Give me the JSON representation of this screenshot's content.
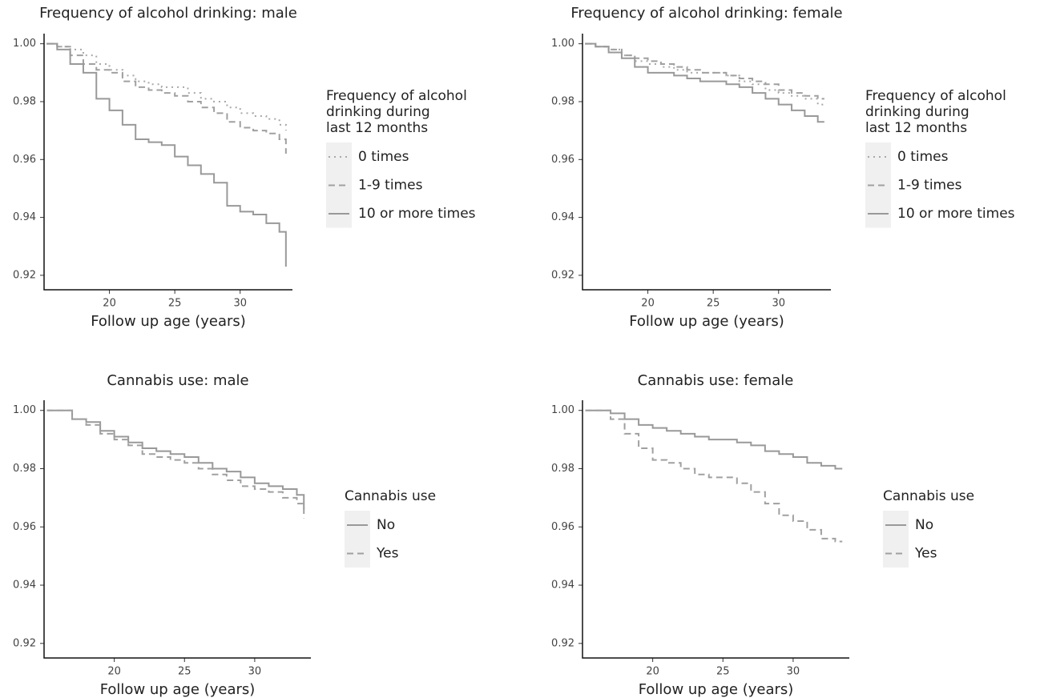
{
  "chart_data": [
    {
      "type": "line",
      "step": true,
      "title": "Frequency of alcohol drinking: male",
      "x_label": "Follow up age (years)",
      "legend_title": [
        "Frequency of alcohol",
        "drinking during",
        "last 12 months"
      ],
      "x": [
        15.2,
        16,
        17,
        18,
        19,
        20,
        21,
        22,
        23,
        24,
        25,
        26,
        27,
        28,
        29,
        30,
        31,
        32,
        33,
        33.5
      ],
      "series": [
        {
          "name": "0 times",
          "color": "#a8a8a8",
          "dash": "dotted",
          "values": [
            1.0,
            0.999,
            0.998,
            0.996,
            0.993,
            0.991,
            0.989,
            0.987,
            0.986,
            0.985,
            0.985,
            0.983,
            0.981,
            0.98,
            0.978,
            0.976,
            0.975,
            0.974,
            0.972,
            0.97
          ]
        },
        {
          "name": "1-9 times",
          "color": "#a0a0a0",
          "dash": "dashed",
          "values": [
            1.0,
            0.999,
            0.996,
            0.993,
            0.991,
            0.99,
            0.987,
            0.985,
            0.984,
            0.983,
            0.982,
            0.98,
            0.978,
            0.976,
            0.973,
            0.971,
            0.97,
            0.969,
            0.967,
            0.962
          ]
        },
        {
          "name": "10 or more times",
          "color": "#999999",
          "dash": "solid",
          "values": [
            1.0,
            0.998,
            0.993,
            0.99,
            0.981,
            0.977,
            0.972,
            0.967,
            0.966,
            0.965,
            0.961,
            0.958,
            0.955,
            0.952,
            0.944,
            0.942,
            0.941,
            0.938,
            0.935,
            0.923
          ]
        }
      ],
      "xlim": [
        15,
        34
      ],
      "xticks": [
        20,
        25,
        30
      ],
      "ylim": [
        0.915,
        1.0035
      ],
      "yticks": [
        0.92,
        0.94,
        0.96,
        0.98,
        {
          "value": 1,
          "label": "1.00"
        }
      ],
      "grid": false
    },
    {
      "type": "line",
      "step": true,
      "title": "Frequency of alcohol drinking: female",
      "x_label": "Follow up age (years)",
      "legend_title": [
        "Frequency of alcohol",
        "drinking during",
        "last 12 months"
      ],
      "x": [
        15.2,
        16,
        17,
        18,
        19,
        20,
        21,
        22,
        23,
        24,
        25,
        26,
        27,
        28,
        29,
        30,
        31,
        32,
        33,
        33.5
      ],
      "series": [
        {
          "name": "0 times",
          "color": "#a8a8a8",
          "dash": "dotted",
          "values": [
            1.0,
            0.999,
            0.998,
            0.996,
            0.994,
            0.993,
            0.992,
            0.991,
            0.99,
            0.99,
            0.99,
            0.989,
            0.987,
            0.986,
            0.984,
            0.983,
            0.982,
            0.981,
            0.979,
            0.979
          ]
        },
        {
          "name": "1-9 times",
          "color": "#a0a0a0",
          "dash": "dashed",
          "values": [
            1.0,
            0.999,
            0.998,
            0.996,
            0.995,
            0.994,
            0.993,
            0.992,
            0.991,
            0.99,
            0.99,
            0.989,
            0.988,
            0.987,
            0.986,
            0.984,
            0.983,
            0.982,
            0.981,
            0.981
          ]
        },
        {
          "name": "10 or more times",
          "color": "#999999",
          "dash": "solid",
          "values": [
            1.0,
            0.999,
            0.997,
            0.995,
            0.992,
            0.99,
            0.99,
            0.989,
            0.988,
            0.987,
            0.987,
            0.986,
            0.985,
            0.983,
            0.981,
            0.979,
            0.977,
            0.975,
            0.973,
            0.973
          ]
        }
      ],
      "xlim": [
        15,
        34
      ],
      "xticks": [
        20,
        25,
        30
      ],
      "ylim": [
        0.915,
        1.0035
      ],
      "yticks": [
        0.92,
        0.94,
        0.96,
        0.98,
        {
          "value": 1,
          "label": "1.00"
        }
      ],
      "grid": false
    },
    {
      "type": "line",
      "step": true,
      "title": "Cannabis use: male",
      "x_label": "Follow up age (years)",
      "legend_title": [
        "Cannabis use"
      ],
      "x": [
        15.2,
        16,
        17,
        18,
        19,
        20,
        21,
        22,
        23,
        24,
        25,
        26,
        27,
        28,
        29,
        30,
        31,
        32,
        33,
        33.5
      ],
      "series": [
        {
          "name": "No",
          "color": "#999999",
          "dash": "solid",
          "values": [
            1.0,
            1.0,
            0.997,
            0.996,
            0.993,
            0.991,
            0.989,
            0.987,
            0.986,
            0.985,
            0.984,
            0.982,
            0.98,
            0.979,
            0.977,
            0.975,
            0.974,
            0.973,
            0.971,
            0.966
          ]
        },
        {
          "name": "Yes",
          "color": "#a0a0a0",
          "dash": "dashed",
          "values": [
            1.0,
            1.0,
            0.997,
            0.995,
            0.992,
            0.99,
            0.988,
            0.985,
            0.984,
            0.983,
            0.982,
            0.98,
            0.978,
            0.976,
            0.974,
            0.973,
            0.972,
            0.97,
            0.968,
            0.963
          ]
        }
      ],
      "xlim": [
        15,
        34
      ],
      "xticks": [
        20,
        25,
        30
      ],
      "ylim": [
        0.915,
        1.0035
      ],
      "yticks": [
        0.92,
        0.94,
        0.96,
        0.98,
        {
          "value": 1,
          "label": "1.00"
        }
      ],
      "grid": false
    },
    {
      "type": "line",
      "step": true,
      "title": "Cannabis use: female",
      "x_label": "Follow up age (years)",
      "legend_title": [
        "Cannabis use"
      ],
      "x": [
        15.2,
        16,
        17,
        18,
        19,
        20,
        21,
        22,
        23,
        24,
        25,
        26,
        27,
        28,
        29,
        30,
        31,
        32,
        33,
        33.5
      ],
      "series": [
        {
          "name": "No",
          "color": "#999999",
          "dash": "solid",
          "values": [
            1.0,
            1.0,
            0.999,
            0.997,
            0.995,
            0.994,
            0.993,
            0.992,
            0.991,
            0.99,
            0.99,
            0.989,
            0.988,
            0.986,
            0.985,
            0.984,
            0.982,
            0.981,
            0.98,
            0.98
          ]
        },
        {
          "name": "Yes",
          "color": "#a0a0a0",
          "dash": "dashed",
          "values": [
            1.0,
            1.0,
            0.997,
            0.992,
            0.987,
            0.983,
            0.982,
            0.98,
            0.978,
            0.977,
            0.977,
            0.975,
            0.972,
            0.968,
            0.964,
            0.962,
            0.959,
            0.956,
            0.955,
            0.955
          ]
        }
      ],
      "xlim": [
        15,
        34
      ],
      "xticks": [
        20,
        25,
        30
      ],
      "ylim": [
        0.915,
        1.0035
      ],
      "yticks": [
        0.92,
        0.94,
        0.96,
        0.98,
        {
          "value": 1,
          "label": "1.00"
        }
      ],
      "grid": false
    }
  ]
}
